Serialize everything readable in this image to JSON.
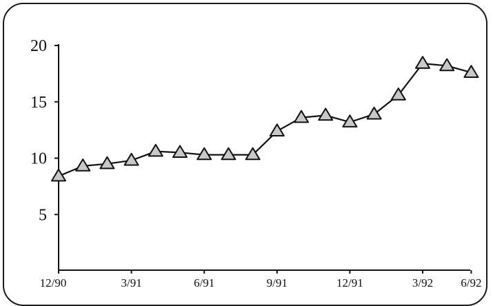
{
  "chart_data": {
    "type": "line",
    "title": "",
    "xlabel": "",
    "ylabel": "",
    "ylim": [
      0,
      20
    ],
    "y_ticks": [
      5,
      10,
      15,
      20
    ],
    "x_tick_labels": [
      "12/90",
      "3/91",
      "6/91",
      "9/91",
      "12/91",
      "3/92",
      "6/92"
    ],
    "x_tick_indices": [
      0,
      3,
      6,
      9,
      12,
      15,
      17
    ],
    "grid": false,
    "legend": "none",
    "marker": "triangle",
    "colors": {
      "line": "#111111",
      "marker_fill": "#c8c8c8",
      "marker_stroke": "#111111"
    },
    "series": [
      {
        "values": [
          8.4,
          9.3,
          9.5,
          9.8,
          10.6,
          10.5,
          10.3,
          10.3,
          10.3,
          12.4,
          13.6,
          13.8,
          13.2,
          13.9,
          15.6,
          18.4,
          18.2,
          17.6
        ]
      }
    ]
  }
}
